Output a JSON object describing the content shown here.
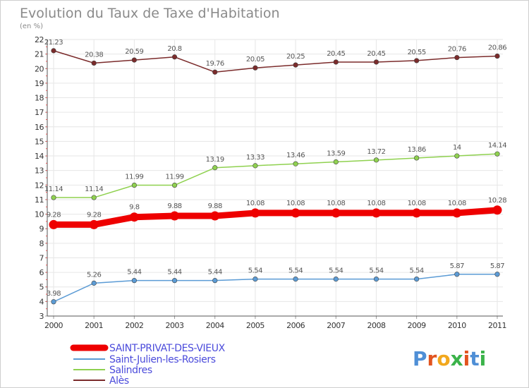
{
  "chart_data": {
    "type": "line",
    "title": "Evolution du Taux de Taxe d'Habitation",
    "subtitle": "(en %)",
    "x": [
      "2000",
      "2001",
      "2002",
      "2003",
      "2004",
      "2005",
      "2006",
      "2007",
      "2008",
      "2009",
      "2010",
      "2011"
    ],
    "ylim": [
      3,
      22
    ],
    "yticks": [
      "3",
      "4",
      "5",
      "6",
      "7",
      "8",
      "9",
      "10",
      "11",
      "12",
      "13",
      "14",
      "15",
      "16",
      "17",
      "18",
      "19",
      "20",
      "21",
      "22"
    ],
    "grid": true,
    "legend_position": "bottom-left",
    "series": [
      {
        "name": "SAINT-PRIVAT-DES-VIEUX",
        "color": "#ee0000",
        "highlight": true,
        "values": [
          9.28,
          9.28,
          9.8,
          9.88,
          9.88,
          10.08,
          10.08,
          10.08,
          10.08,
          10.08,
          10.08,
          10.28
        ],
        "labels": [
          "9.28",
          "9.28",
          "9.8",
          "9.88",
          "9.88",
          "10.08",
          "10.08",
          "10.08",
          "10.08",
          "10.08",
          "10.08",
          "10.28"
        ]
      },
      {
        "name": "Saint-Julien-les-Rosiers",
        "color": "#5b9bd5",
        "highlight": false,
        "values": [
          3.98,
          5.26,
          5.44,
          5.44,
          5.44,
          5.54,
          5.54,
          5.54,
          5.54,
          5.54,
          5.87,
          5.87
        ],
        "labels": [
          "3.98",
          "5.26",
          "5.44",
          "5.44",
          "5.44",
          "5.54",
          "5.54",
          "5.54",
          "5.54",
          "5.54",
          "5.87",
          "5.87"
        ]
      },
      {
        "name": "Salindres",
        "color": "#8fd14f",
        "highlight": false,
        "values": [
          11.14,
          11.14,
          11.99,
          11.99,
          13.19,
          13.33,
          13.46,
          13.59,
          13.72,
          13.86,
          14,
          14.14
        ],
        "labels": [
          "11.14",
          "11.14",
          "11.99",
          "11.99",
          "13.19",
          "13.33",
          "13.46",
          "13.59",
          "13.72",
          "13.86",
          "14",
          "14.14"
        ]
      },
      {
        "name": "Alès",
        "color": "#7b2b2b",
        "highlight": false,
        "values": [
          21.23,
          20.38,
          20.59,
          20.8,
          19.76,
          20.05,
          20.25,
          20.45,
          20.45,
          20.55,
          20.76,
          20.86
        ],
        "labels": [
          "21.23",
          "20.38",
          "20.59",
          "20.8",
          "19.76",
          "20.05",
          "20.25",
          "20.45",
          "20.45",
          "20.55",
          "20.76",
          "20.86"
        ]
      }
    ]
  },
  "brand": {
    "letters": [
      "P",
      "r",
      "o",
      "x",
      "i",
      "t",
      "i"
    ],
    "colors": [
      "#4f8fd6",
      "#e2541f",
      "#f2a81d",
      "#3bb34a",
      "#e2541f",
      "#4f8fd6",
      "#3bb34a"
    ]
  },
  "legend_text_color": "#4b4bdb"
}
